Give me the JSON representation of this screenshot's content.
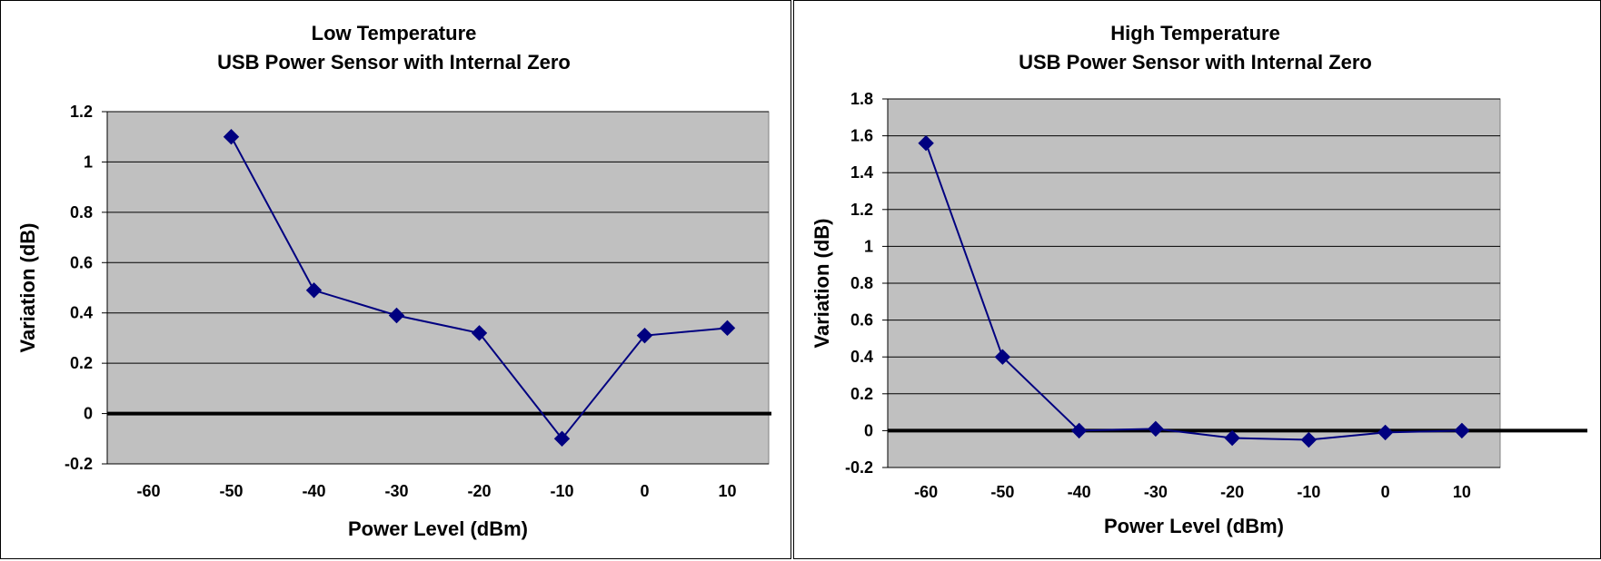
{
  "colors": {
    "plot_background": "#c0c0c0",
    "series": "#000080",
    "gridline": "#000000",
    "zero_line": "#000000"
  },
  "chart_data": [
    {
      "type": "line",
      "title_lines": [
        "Low Temperature",
        "USB Power Sensor with Internal Zero"
      ],
      "xlabel": "Power Level (dBm)",
      "ylabel": "Variation (dB)",
      "x_categories": [
        "-60",
        "-50",
        "-40",
        "-30",
        "-20",
        "-10",
        "0",
        "10"
      ],
      "y_ticks": [
        "1.2",
        "1",
        "0.8",
        "0.6",
        "0.4",
        "0.2",
        "0",
        "-0.2"
      ],
      "ylim": [
        -0.2,
        1.2
      ],
      "grid": true,
      "legend": "none",
      "marker": "diamond",
      "series": [
        {
          "x": [
            "-50",
            "-40",
            "-30",
            "-20",
            "-10",
            "0",
            "10"
          ],
          "values": [
            1.1,
            0.49,
            0.39,
            0.32,
            -0.1,
            0.31,
            0.34
          ]
        }
      ]
    },
    {
      "type": "line",
      "title_lines": [
        "High Temperature",
        "USB Power Sensor with Internal Zero"
      ],
      "xlabel": "Power Level (dBm)",
      "ylabel": "Variation (dB)",
      "x_categories": [
        "-60",
        "-50",
        "-40",
        "-30",
        "-20",
        "-10",
        "0",
        "10"
      ],
      "y_ticks": [
        "1.8",
        "1.6",
        "1.4",
        "1.2",
        "1",
        "0.8",
        "0.6",
        "0.4",
        "0.2",
        "0",
        "-0.2"
      ],
      "ylim": [
        -0.2,
        1.8
      ],
      "grid": true,
      "legend": "none",
      "marker": "diamond",
      "series": [
        {
          "x": [
            "-60",
            "-50",
            "-40",
            "-30",
            "-20",
            "-10",
            "0",
            "10"
          ],
          "values": [
            1.56,
            0.4,
            0.0,
            0.01,
            -0.04,
            -0.05,
            -0.01,
            0.0
          ]
        }
      ]
    }
  ]
}
